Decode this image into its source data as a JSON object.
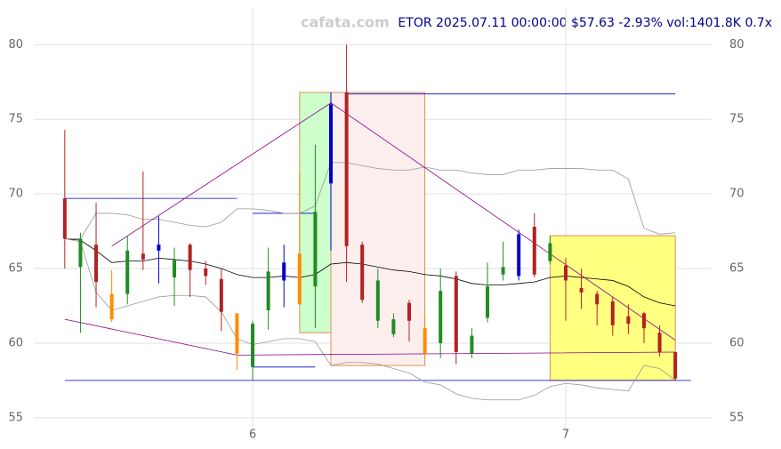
{
  "chart_data": {
    "type": "candlestick",
    "title": "ETOR 2025.07.11 00:00:00 $57.63 -2.93% vol:1401.8K 0.7x",
    "watermark": "cafata.com",
    "x": [
      5.4,
      5.45,
      5.5,
      5.55,
      5.6,
      5.65,
      5.7,
      5.75,
      5.8,
      5.85,
      5.9,
      5.95,
      6.0,
      6.05,
      6.1,
      6.15,
      6.2,
      6.25,
      6.3,
      6.35,
      6.4,
      6.45,
      6.5,
      6.55,
      6.6,
      6.65,
      6.7,
      6.75,
      6.8,
      6.85,
      6.9,
      6.95,
      7.0,
      7.05,
      7.1,
      7.15,
      7.2,
      7.25,
      7.3,
      7.35
    ],
    "open": [
      69.7,
      65.1,
      66.6,
      61.6,
      63.3,
      66.0,
      66.2,
      64.4,
      66.6,
      65.0,
      64.3,
      62.0,
      58.4,
      62.2,
      64.2,
      62.6,
      63.8,
      70.7,
      76.8,
      66.6,
      61.5,
      60.6,
      62.7,
      61.0,
      60.0,
      64.5,
      59.3,
      61.7,
      64.6,
      64.5,
      67.8,
      65.5,
      65.2,
      63.7,
      63.3,
      62.8,
      61.8,
      62.0,
      60.7,
      59.4
    ],
    "high": [
      74.3,
      67.4,
      69.4,
      64.9,
      67.2,
      71.5,
      68.5,
      66.4,
      66.7,
      65.5,
      65.0,
      62.0,
      61.5,
      66.4,
      66.6,
      71.5,
      73.3,
      76.8,
      80.0,
      66.8,
      65.0,
      62.0,
      62.9,
      61.9,
      65.0,
      64.8,
      61.0,
      65.4,
      66.8,
      67.6,
      68.7,
      67.2,
      65.7,
      65.0,
      63.5,
      63.1,
      62.6,
      62.1,
      61.2,
      59.4
    ],
    "low": [
      65.0,
      60.7,
      62.4,
      61.4,
      62.6,
      64.9,
      64.0,
      62.5,
      63.1,
      63.9,
      60.8,
      58.2,
      57.5,
      60.9,
      62.4,
      62.6,
      61.0,
      66.2,
      64.1,
      62.7,
      61.0,
      60.4,
      60.1,
      59.0,
      59.0,
      58.6,
      59.0,
      61.4,
      64.2,
      64.2,
      64.4,
      65.3,
      61.5,
      62.3,
      61.2,
      60.5,
      60.6,
      60.0,
      59.1,
      57.5
    ],
    "close": [
      67.0,
      67.0,
      64.1,
      63.3,
      66.2,
      65.6,
      66.6,
      65.6,
      64.9,
      64.5,
      62.1,
      59.3,
      61.3,
      64.8,
      65.4,
      66.0,
      68.8,
      76.0,
      66.5,
      62.9,
      64.2,
      61.6,
      61.5,
      59.3,
      63.5,
      59.4,
      60.5,
      63.8,
      65.1,
      67.3,
      64.6,
      66.7,
      64.2,
      63.4,
      62.6,
      61.2,
      61.3,
      61.0,
      59.4,
      57.63
    ],
    "colors": [
      "#b22222",
      "#228b22",
      "#b22222",
      "#ff8c00",
      "#228b22",
      "#b22222",
      "#0000cd",
      "#228b22",
      "#b22222",
      "#b22222",
      "#b22222",
      "#ff8c00",
      "#228b22",
      "#228b22",
      "#0000cd",
      "#ff8c00",
      "#228b22",
      "#0000cd",
      "#b22222",
      "#b22222",
      "#228b22",
      "#228b22",
      "#b22222",
      "#ff8c00",
      "#228b22",
      "#b22222",
      "#228b22",
      "#228b22",
      "#228b22",
      "#0000cd",
      "#b22222",
      "#228b22",
      "#b22222",
      "#b22222",
      "#b22222",
      "#b22222",
      "#b22222",
      "#b22222",
      "#b22222",
      "#b22222"
    ],
    "overlays": [
      {
        "color": "#000000",
        "values": [
          67.0,
          66.9,
          66.2,
          65.4,
          65.5,
          65.5,
          65.7,
          65.6,
          65.5,
          65.3,
          65.0,
          64.6,
          64.4,
          64.4,
          64.5,
          64.4,
          64.6,
          65.3,
          65.4,
          65.3,
          65.1,
          64.9,
          64.8,
          64.6,
          64.5,
          64.3,
          64.0,
          63.9,
          63.9,
          64.0,
          64.1,
          64.4,
          64.5,
          64.4,
          64.3,
          64.2,
          63.8,
          63.1,
          62.7,
          62.5
        ]
      },
      {
        "color": "#999999",
        "values": [
          67.0,
          67.0,
          68.7,
          68.7,
          68.6,
          68.3,
          68.3,
          68.1,
          67.9,
          67.8,
          68.1,
          69.0,
          69.0,
          68.9,
          68.7,
          68.7,
          69.2,
          72.1,
          72.1,
          71.9,
          71.7,
          71.6,
          71.6,
          71.8,
          71.6,
          71.6,
          71.4,
          71.3,
          71.3,
          71.6,
          71.6,
          71.7,
          71.7,
          71.7,
          71.6,
          71.6,
          71.0,
          67.7,
          67.3,
          67.4
        ]
      },
      {
        "color": "#999999",
        "values": [
          67.0,
          66.8,
          63.4,
          62.2,
          62.5,
          62.8,
          63.1,
          63.2,
          63.2,
          63.1,
          62.1,
          60.3,
          59.9,
          60.1,
          60.3,
          60.3,
          60.1,
          58.5,
          58.7,
          58.7,
          58.6,
          58.3,
          58.0,
          57.4,
          57.2,
          56.6,
          56.3,
          56.2,
          56.2,
          56.2,
          56.5,
          57.1,
          57.3,
          57.2,
          57.0,
          56.9,
          56.8,
          58.5,
          58.3,
          57.5
        ]
      }
    ],
    "zones": [
      {
        "x": [
          6.15,
          6.25
        ],
        "y": [
          60.7,
          76.8
        ],
        "color": "#ccffcc"
      },
      {
        "x": [
          6.25,
          6.55
        ],
        "y": [
          58.5,
          76.8
        ],
        "color": "#fdeeee"
      },
      {
        "x": [
          6.95,
          7.35
        ],
        "y": [
          57.5,
          67.2
        ],
        "color": "#ffff80"
      }
    ],
    "trend_lines": [
      {
        "color": "#8b008b",
        "x": [
          5.55,
          6.25,
          7.35
        ],
        "y": [
          66.5,
          76.1,
          60.2
        ]
      },
      {
        "color": "#8b008b",
        "x": [
          5.4,
          5.95,
          7.35
        ],
        "y": [
          61.6,
          59.2,
          59.4
        ]
      }
    ],
    "levels": [
      {
        "color": "#0000cd",
        "x": [
          5.4,
          5.95
        ],
        "y": 69.7
      },
      {
        "color": "#0000cd",
        "x": [
          6.0,
          6.2
        ],
        "y": 68.7
      },
      {
        "color": "#0000cd",
        "x": [
          6.0,
          6.2
        ],
        "y": 58.4
      },
      {
        "color": "#0000cd",
        "x": [
          6.3,
          7.35
        ],
        "y": 76.7
      },
      {
        "color": "#0000cd",
        "x": [
          5.4,
          7.4
        ],
        "y": 57.5
      }
    ],
    "xlim": [
      5.301,
      7.466
    ],
    "ylim": [
      53.8,
      82.4
    ],
    "xticks": [
      6,
      7
    ],
    "yticks": [
      55,
      60,
      65,
      70,
      75,
      80
    ],
    "grid": true
  }
}
